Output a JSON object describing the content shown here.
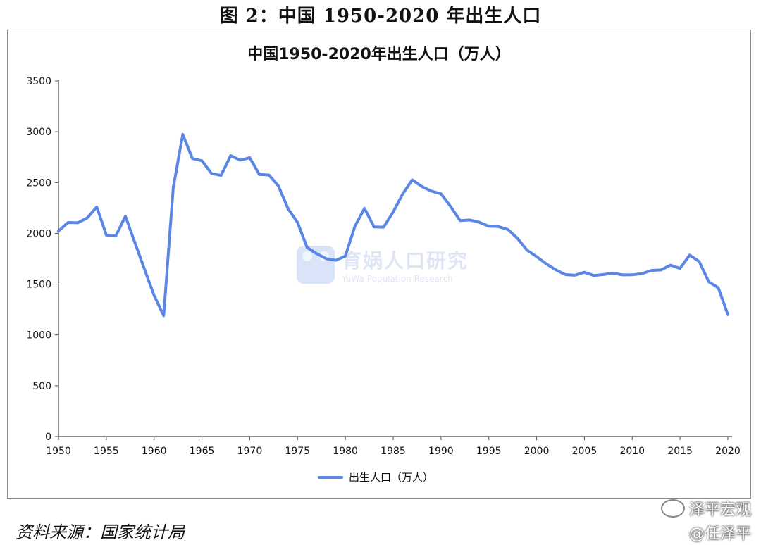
{
  "figure_caption": "图 2：中国 1950-2020 年出生人口",
  "source": "资料来源：国家统计局",
  "watermark": {
    "cn": "育娲人口研究",
    "en": "YuWa Population Research"
  },
  "brand": {
    "line1": "泽平宏观",
    "line2": "@任泽平"
  },
  "colors": {
    "line": "#5b86e5",
    "axis": "#444444"
  },
  "chart_data": {
    "type": "line",
    "title": "中国1950-2020年出生人口（万人）",
    "xlabel": "",
    "ylabel": "",
    "xlim": [
      1950,
      2020
    ],
    "ylim": [
      0,
      3500
    ],
    "xticks": [
      1950,
      1955,
      1960,
      1965,
      1970,
      1975,
      1980,
      1985,
      1990,
      1995,
      2000,
      2005,
      2010,
      2015,
      2020
    ],
    "yticks": [
      0,
      500,
      1000,
      1500,
      2000,
      2500,
      3000,
      3500
    ],
    "grid": false,
    "legend_position": "bottom",
    "series": [
      {
        "name": "出生人口（万人）",
        "x": [
          1950,
          1951,
          1952,
          1953,
          1954,
          1955,
          1956,
          1957,
          1958,
          1959,
          1960,
          1961,
          1962,
          1963,
          1964,
          1965,
          1966,
          1967,
          1968,
          1969,
          1970,
          1971,
          1972,
          1973,
          1974,
          1975,
          1976,
          1977,
          1978,
          1979,
          1980,
          1981,
          1982,
          1983,
          1984,
          1985,
          1986,
          1987,
          1988,
          1989,
          1990,
          1991,
          1992,
          1993,
          1994,
          1995,
          1996,
          1997,
          1998,
          1999,
          2000,
          2001,
          2002,
          2003,
          2004,
          2005,
          2006,
          2007,
          2008,
          2009,
          2010,
          2011,
          2012,
          2013,
          2014,
          2015,
          2016,
          2017,
          2018,
          2019,
          2020
        ],
        "values": [
          2023,
          2107,
          2104,
          2151,
          2260,
          1984,
          1975,
          2169,
          1905,
          1647,
          1389,
          1189,
          2451,
          2975,
          2737,
          2715,
          2590,
          2570,
          2765,
          2720,
          2745,
          2580,
          2575,
          2467,
          2245,
          2107,
          1860,
          1800,
          1751,
          1735,
          1776,
          2071,
          2246,
          2063,
          2061,
          2210,
          2390,
          2527,
          2461,
          2416,
          2390,
          2265,
          2126,
          2132,
          2110,
          2070,
          2067,
          2038,
          1951,
          1834,
          1771,
          1701,
          1641,
          1594,
          1588,
          1617,
          1585,
          1595,
          1608,
          1591,
          1592,
          1604,
          1635,
          1640,
          1687,
          1655,
          1786,
          1723,
          1523,
          1465,
          1200
        ]
      }
    ]
  }
}
